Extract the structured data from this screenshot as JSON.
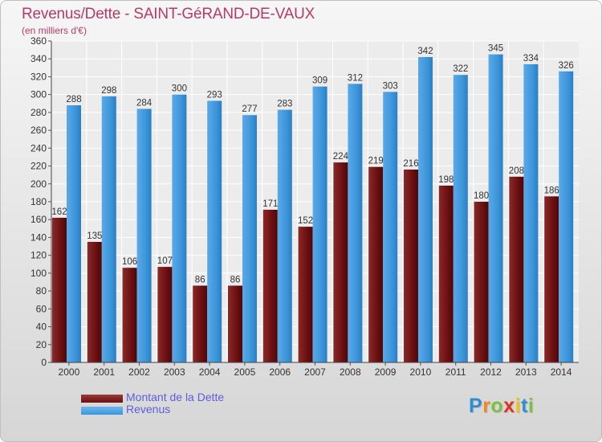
{
  "title": "Revenus/Dette - SAINT-GéRAND-DE-VAUX",
  "subtitle": "(en milliers d'€)",
  "legend": {
    "debt_label": "Montant de la Dette",
    "revenue_label": "Revenus"
  },
  "logo": {
    "letters": [
      "P",
      "r",
      "o",
      "x",
      "i",
      "t",
      "i"
    ],
    "colors": [
      "#2c8fd6",
      "#f08a1a",
      "#7cc242",
      "#e2321f",
      "#f2c20b",
      "#2c8fd6",
      "#7cc242"
    ]
  },
  "colors": {
    "debt": "#6b0f10",
    "revenue": "#3d96db",
    "title": "#b53a69",
    "legend_text": "#5d5de0"
  },
  "chart_data": {
    "type": "bar",
    "categories": [
      "2000",
      "2001",
      "2002",
      "2003",
      "2004",
      "2005",
      "2006",
      "2007",
      "2008",
      "2009",
      "2010",
      "2011",
      "2012",
      "2013",
      "2014"
    ],
    "series": [
      {
        "name": "Montant de la Dette",
        "values": [
          162,
          135,
          106,
          107,
          86,
          86,
          171,
          152,
          224,
          219,
          216,
          198,
          180,
          208,
          186
        ]
      },
      {
        "name": "Revenus",
        "values": [
          288,
          298,
          284,
          300,
          293,
          277,
          283,
          309,
          312,
          303,
          342,
          322,
          345,
          334,
          326
        ]
      }
    ],
    "ylim": [
      0,
      360
    ],
    "yticks": [
      0,
      20,
      40,
      60,
      80,
      100,
      120,
      140,
      160,
      180,
      200,
      220,
      240,
      260,
      280,
      300,
      320,
      340,
      360
    ],
    "grid": true,
    "legend_position": "bottom-left"
  }
}
